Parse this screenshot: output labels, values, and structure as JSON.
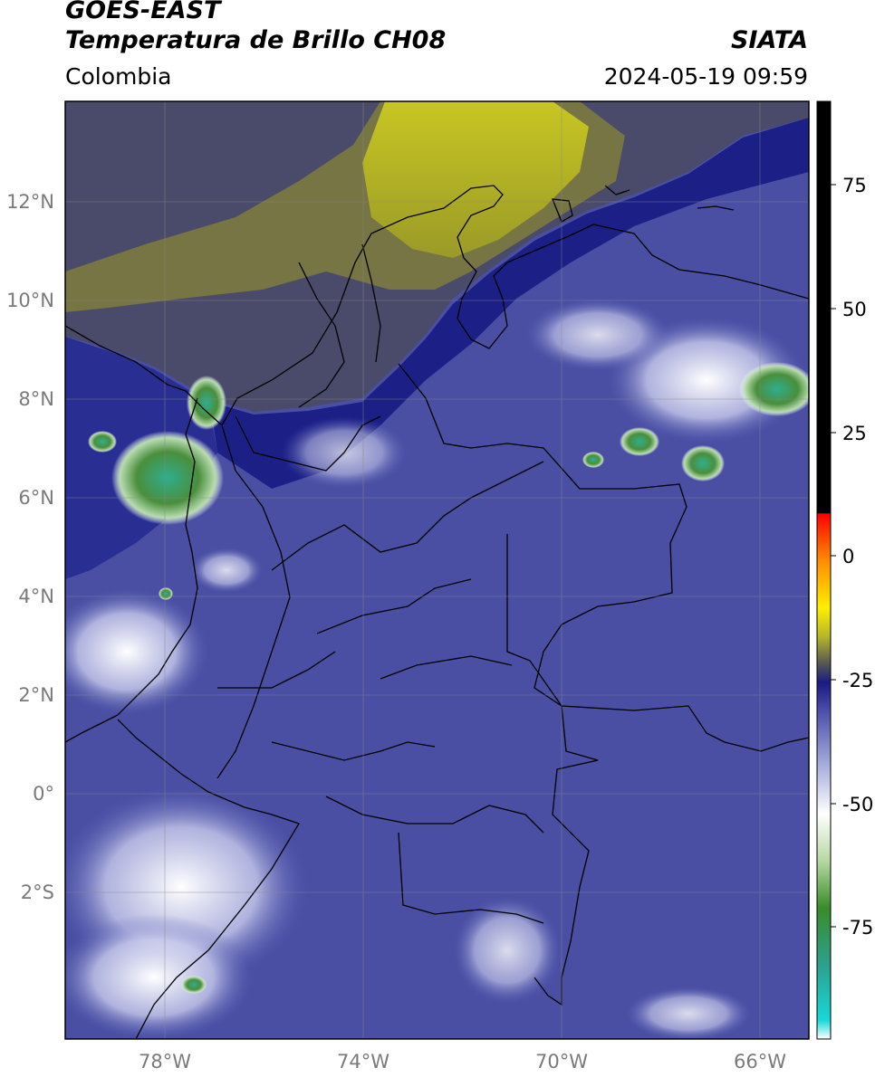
{
  "header": {
    "satellite": "GOES-EAST",
    "product": "Temperatura de Brillo CH08",
    "agency": "SIATA",
    "region": "Colombia",
    "datetime": "2024-05-19 09:59"
  },
  "map": {
    "lat_ticks": [
      "12°N",
      "10°N",
      "8°N",
      "6°N",
      "4°N",
      "2°N",
      "0°",
      "2°S"
    ],
    "lon_ticks": [
      "78°W",
      "74°W",
      "70°W",
      "66°W"
    ],
    "lon_range": [
      -80,
      -65
    ],
    "lat_range": [
      -5,
      14
    ]
  },
  "colorbar": {
    "ticks": [
      "75",
      "50",
      "25",
      "0",
      "-25",
      "-50",
      "-75"
    ],
    "range": [
      -95,
      90
    ],
    "palette": [
      "#ffffff",
      "#17d8d8",
      "#2ca08c",
      "#3a8c2a",
      "#b7d8a4",
      "#ffffff",
      "#aab0dc",
      "#4b4faa",
      "#1a1a82",
      "#555555",
      "#b8b826",
      "#ffef00",
      "#ff8c00",
      "#ff0000",
      "#000000"
    ]
  }
}
